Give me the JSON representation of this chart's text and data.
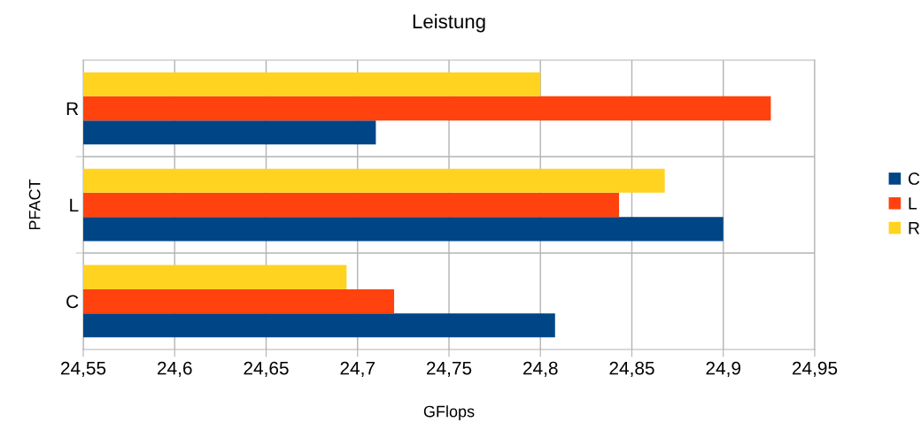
{
  "chart_data": {
    "type": "bar",
    "orientation": "horizontal",
    "title": "Leistung",
    "xlabel": "GFlops",
    "ylabel": "PFACT",
    "categories": [
      "R",
      "L",
      "C"
    ],
    "series": [
      {
        "name": "C",
        "color": "#004586",
        "values": [
          24.71,
          24.9,
          24.808
        ]
      },
      {
        "name": "L",
        "color": "#ff420e",
        "values": [
          24.926,
          24.843,
          24.72
        ]
      },
      {
        "name": "R",
        "color": "#ffd320",
        "values": [
          24.8,
          24.868,
          24.694
        ]
      }
    ],
    "xlim": [
      24.55,
      24.95
    ],
    "xticks": [
      {
        "value": 24.55,
        "label": "24,55"
      },
      {
        "value": 24.6,
        "label": "24,6"
      },
      {
        "value": 24.65,
        "label": "24,65"
      },
      {
        "value": 24.7,
        "label": "24,7"
      },
      {
        "value": 24.75,
        "label": "24,75"
      },
      {
        "value": 24.8,
        "label": "24,8"
      },
      {
        "value": 24.85,
        "label": "24,85"
      },
      {
        "value": 24.9,
        "label": "24,9"
      },
      {
        "value": 24.95,
        "label": "24,95"
      }
    ],
    "grid": true,
    "legend": "right"
  }
}
